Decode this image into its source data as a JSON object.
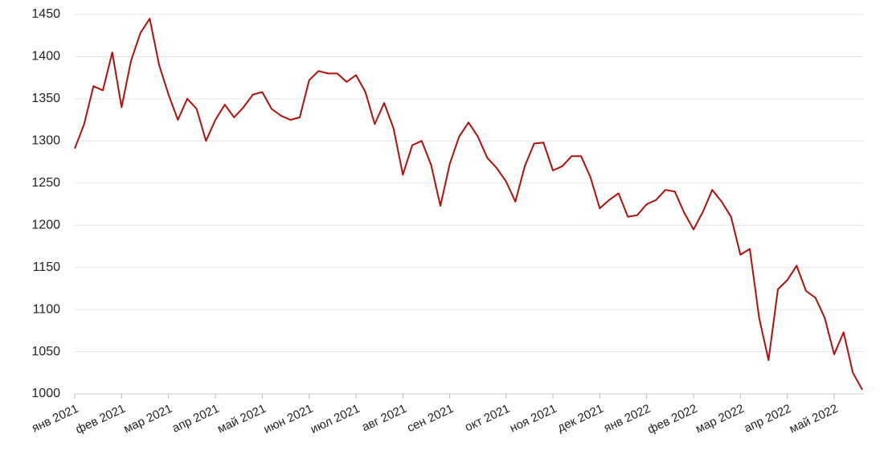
{
  "chart_data": {
    "type": "line",
    "categories": [
      "янв 2021",
      null,
      null,
      null,
      null,
      "фев 2021",
      null,
      null,
      null,
      null,
      "мар 2021",
      null,
      null,
      null,
      null,
      "апр 2021",
      null,
      null,
      null,
      null,
      "май 2021",
      null,
      null,
      null,
      null,
      "июн 2021",
      null,
      null,
      null,
      null,
      "июл 2021",
      null,
      null,
      null,
      null,
      "авг 2021",
      null,
      null,
      null,
      null,
      "сен 2021",
      null,
      null,
      null,
      null,
      null,
      "окт 2021",
      null,
      null,
      null,
      null,
      "ноя 2021",
      null,
      null,
      null,
      null,
      "дек 2021",
      null,
      null,
      null,
      null,
      "янв 2022",
      null,
      null,
      null,
      null,
      "фев 2022",
      null,
      null,
      null,
      null,
      "мар 2022",
      null,
      null,
      null,
      null,
      "апр 2022",
      null,
      null,
      null,
      null,
      "май 2022",
      null,
      null,
      null
    ],
    "values": [
      1291,
      1320,
      1365,
      1360,
      1405,
      1340,
      1395,
      1428,
      1445,
      1390,
      1355,
      1325,
      1350,
      1338,
      1300,
      1325,
      1343,
      1328,
      1340,
      1355,
      1358,
      1338,
      1330,
      1325,
      1328,
      1372,
      1383,
      1380,
      1380,
      1370,
      1378,
      1358,
      1320,
      1345,
      1315,
      1260,
      1295,
      1300,
      1272,
      1223,
      1273,
      1305,
      1322,
      1305,
      1280,
      1268,
      1252,
      1228,
      1270,
      1297,
      1298,
      1265,
      1270,
      1282,
      1282,
      1257,
      1220,
      1230,
      1238,
      1210,
      1212,
      1225,
      1230,
      1242,
      1240,
      1215,
      1195,
      1216,
      1242,
      1228,
      1210,
      1165,
      1172,
      1090,
      1040,
      1124,
      1135,
      1152,
      1122,
      1114,
      1090,
      1047,
      1073,
      1025,
      1005
    ],
    "color": "#b50d0d",
    "ylim": [
      1000,
      1450
    ],
    "yticks": [
      1000,
      1050,
      1100,
      1150,
      1200,
      1250,
      1300,
      1350,
      1400,
      1450
    ],
    "grid": true
  }
}
